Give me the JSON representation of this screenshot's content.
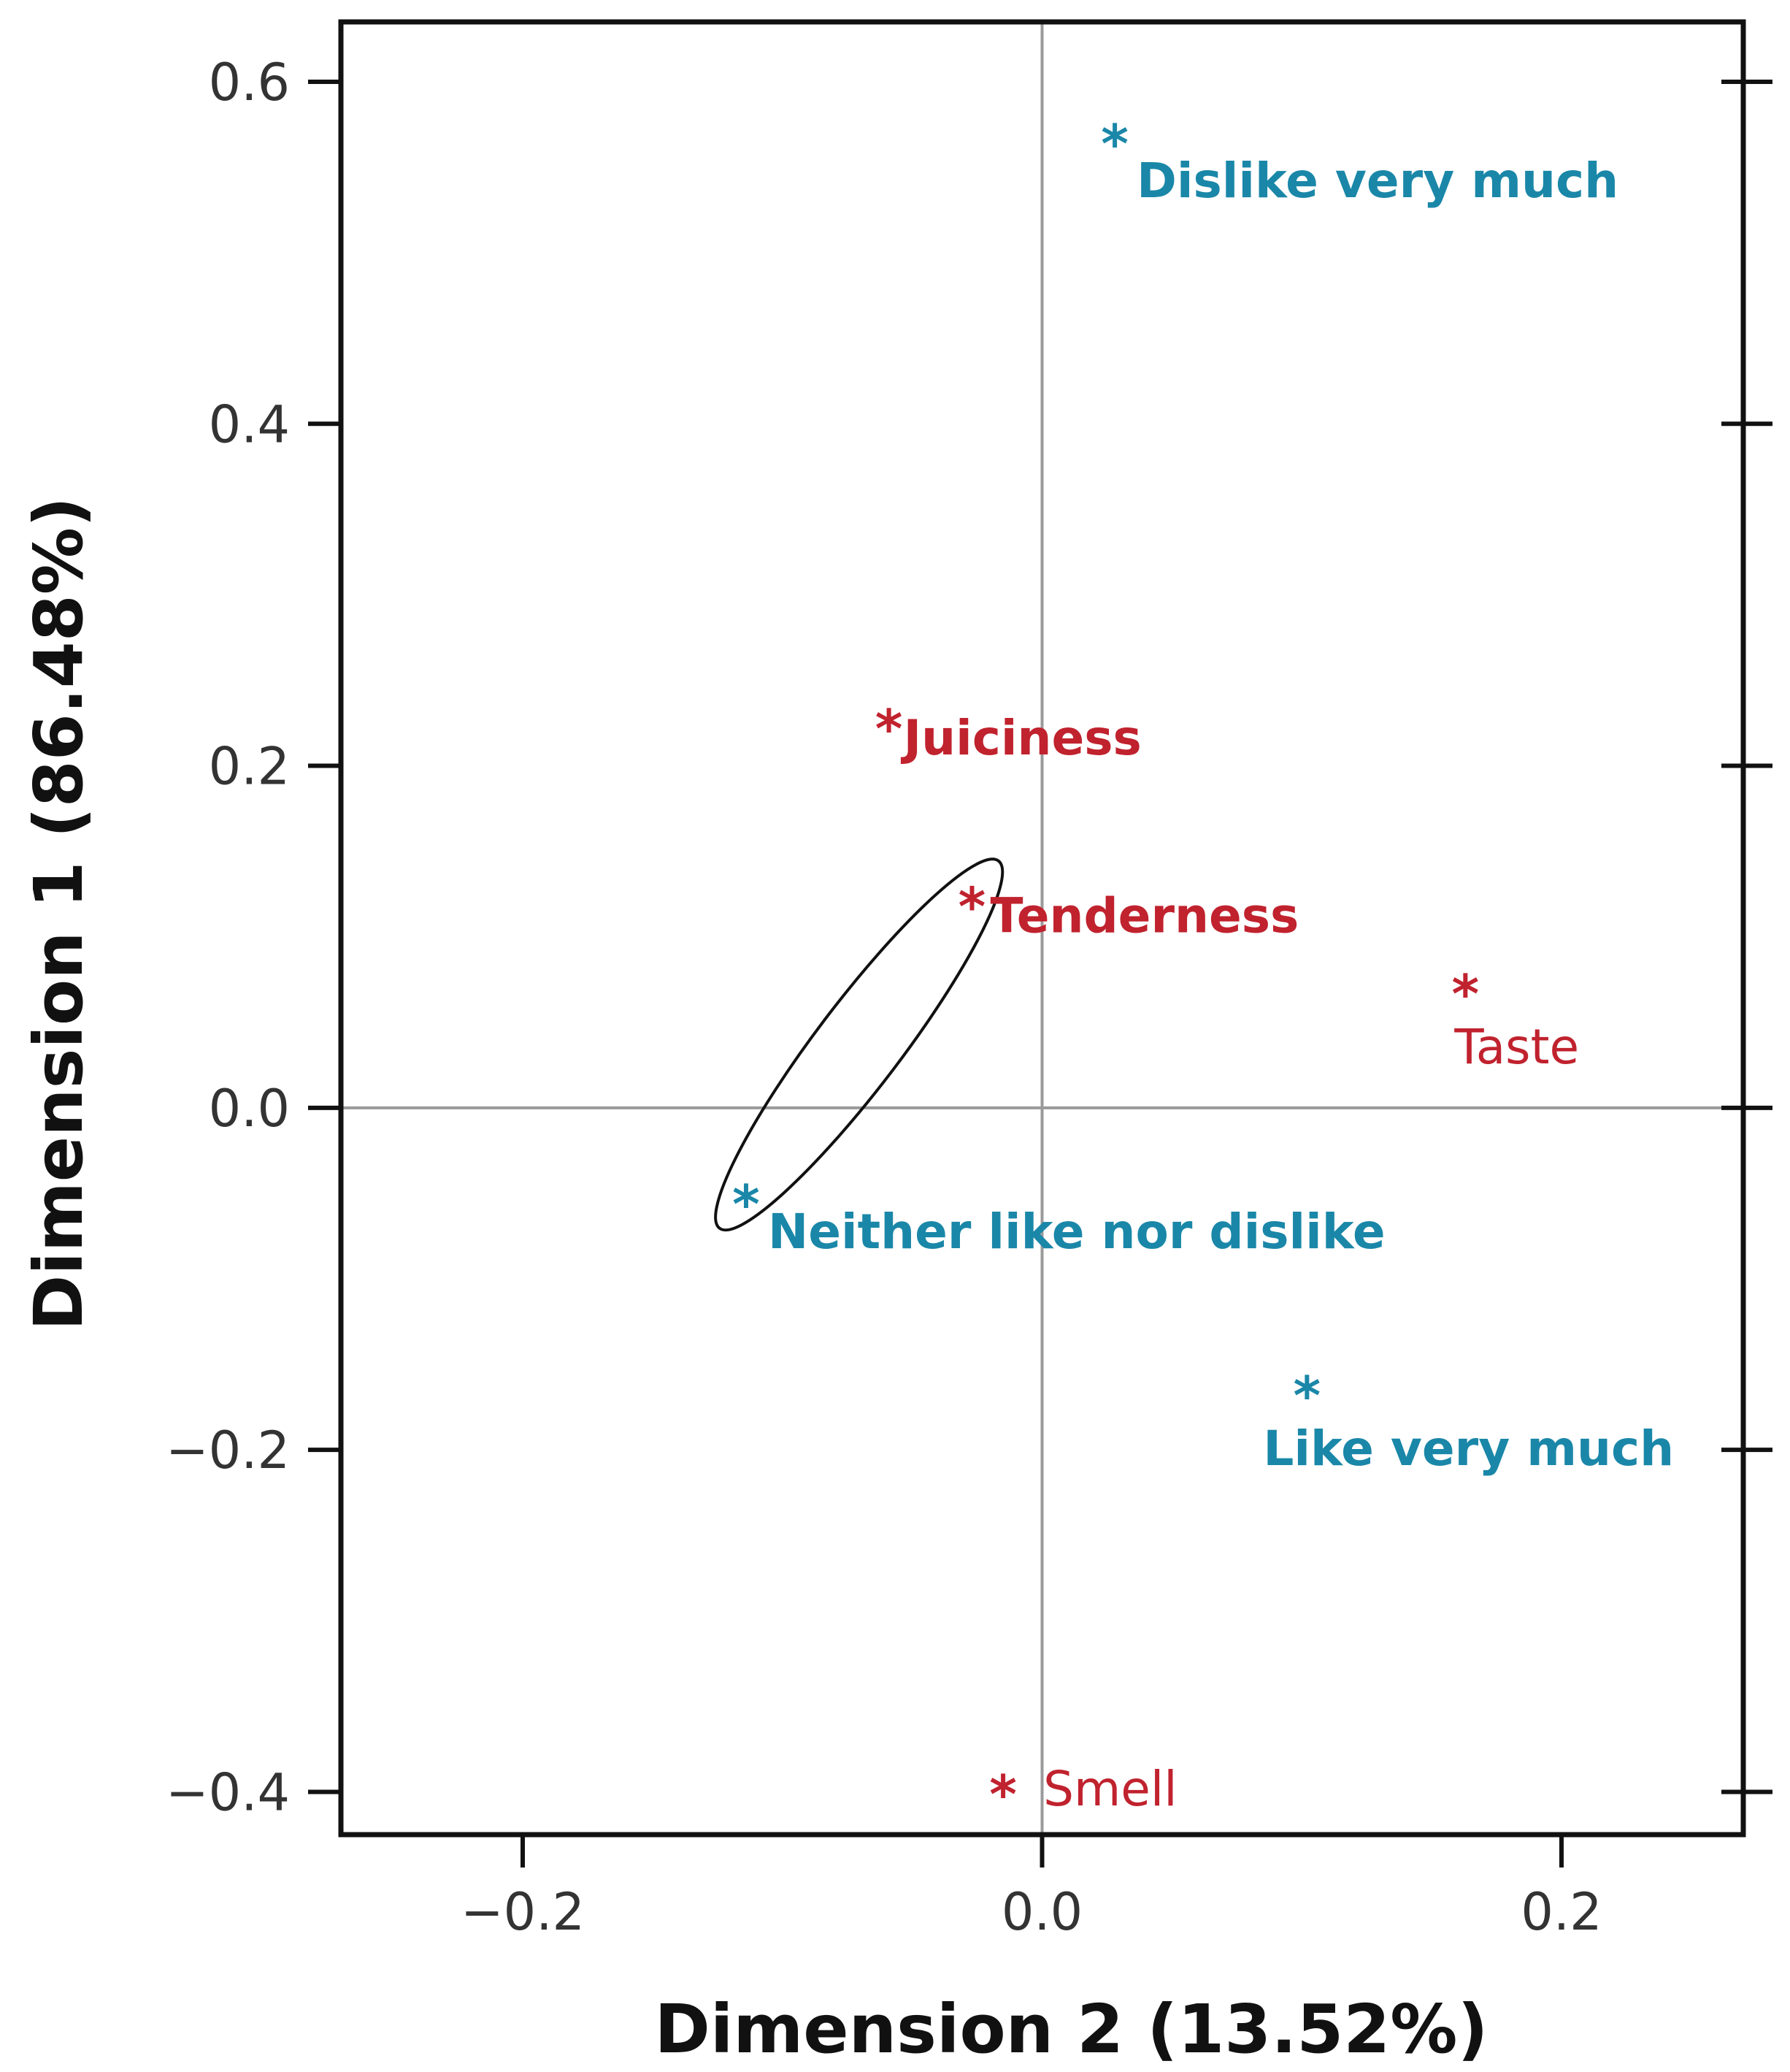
{
  "chart_data": {
    "type": "scatter",
    "xlabel": "Dimension 2 (13.52%)",
    "ylabel": "Dimension 1 (86.48%)",
    "xlim": [
      -0.27,
      0.27
    ],
    "ylim": [
      -0.425,
      0.635
    ],
    "xticks": [
      -0.2,
      0.0,
      0.2
    ],
    "xtick_labels": [
      "−0.2",
      "0.0",
      "0.2"
    ],
    "yticks": [
      -0.4,
      -0.2,
      0.0,
      0.2,
      0.4,
      0.6
    ],
    "ytick_labels": [
      "−0.4",
      "−0.2",
      "0.0",
      "0.2",
      "0.4",
      "0.6"
    ],
    "grid": false,
    "reference_lines": {
      "x": 0.0,
      "y": 0.0
    },
    "series": [
      {
        "color": "#1a87a8",
        "points": [
          {
            "label": "Dislike very much",
            "x": 0.028,
            "y": 0.57
          },
          {
            "label": "Neither like nor dislike",
            "x": -0.114,
            "y": -0.05
          },
          {
            "label": "Like very much",
            "x": 0.102,
            "y": -0.162
          }
        ]
      },
      {
        "color": "#c0222e",
        "points": [
          {
            "label": "Juiciness",
            "x": -0.059,
            "y": 0.228
          },
          {
            "label": "Tenderness",
            "x": -0.027,
            "y": 0.124
          },
          {
            "label": "Taste",
            "x": 0.163,
            "y": 0.073
          },
          {
            "label": "Smell",
            "x": -0.015,
            "y": -0.395
          }
        ]
      }
    ],
    "ellipse": {
      "x1": -0.114,
      "y1": -0.05,
      "x2": -0.027,
      "y2": 0.124
    }
  }
}
